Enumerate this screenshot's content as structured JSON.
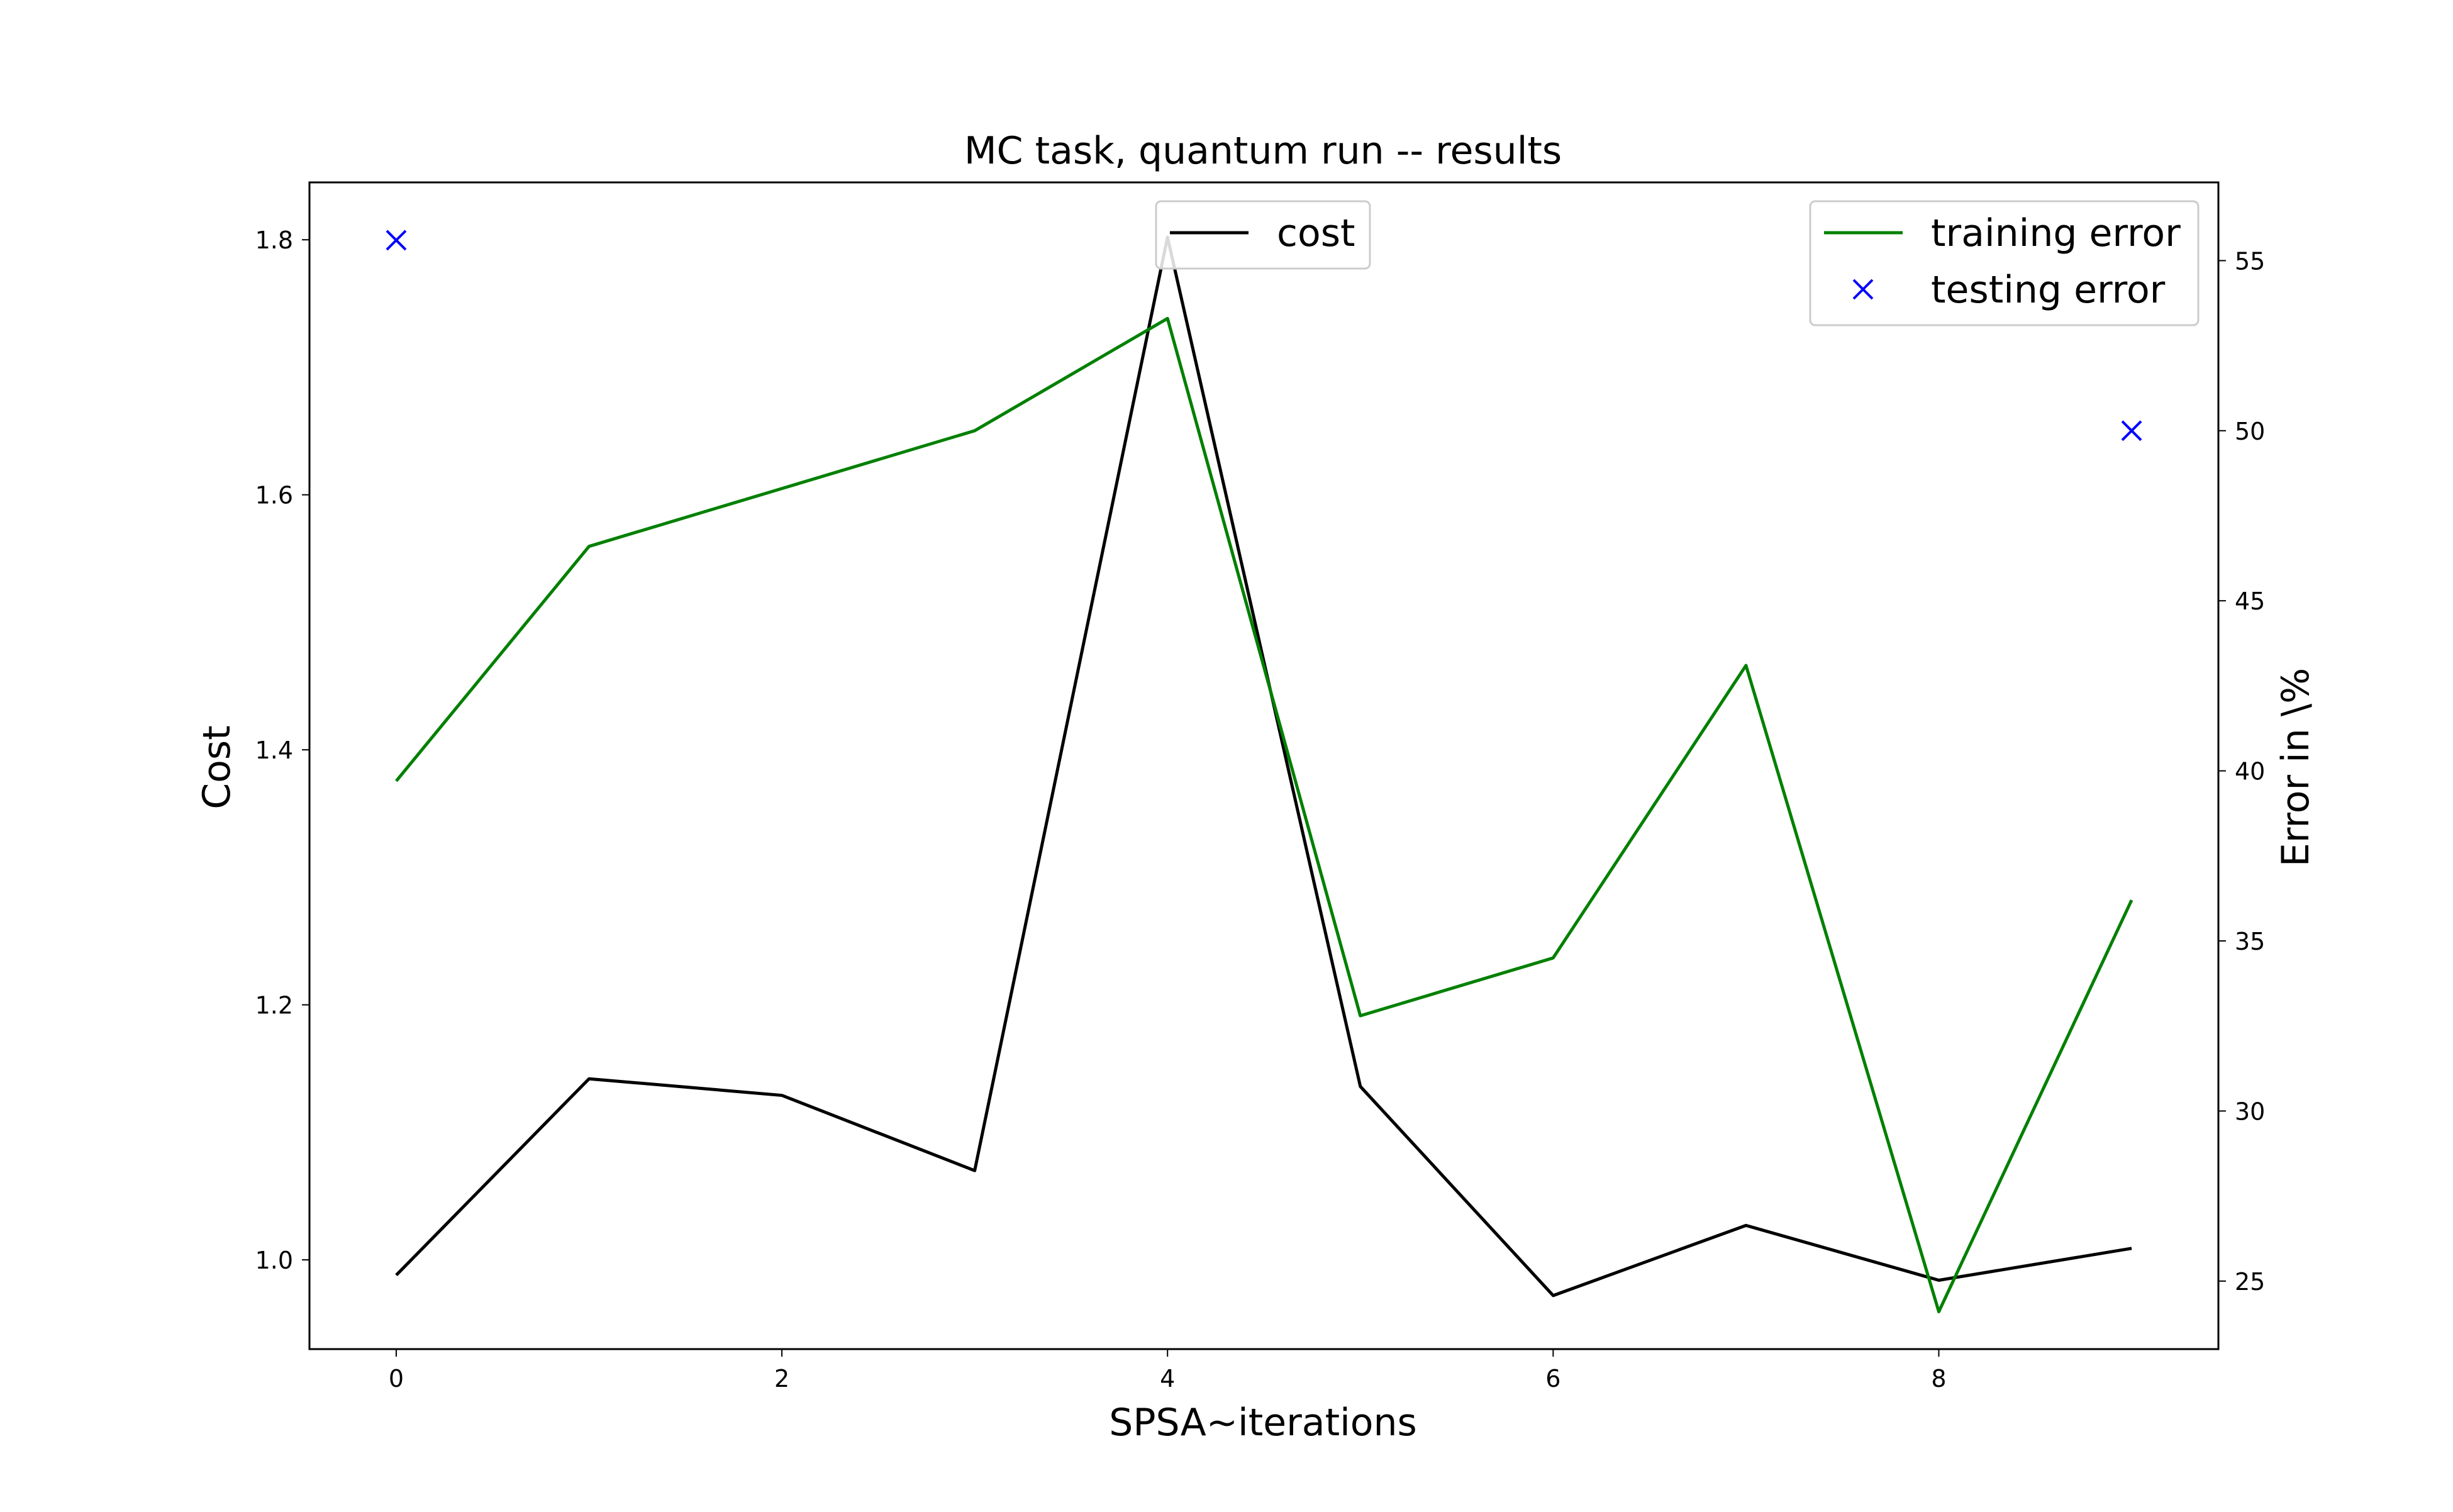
{
  "chart_data": {
    "type": "line",
    "title": "MC task, quantum run -- results",
    "xlabel": "SPSA~iterations",
    "ylabel_left": "Cost",
    "ylabel_right": "Error in \\%",
    "xlim": [
      -0.45,
      9.45
    ],
    "ylim_left": [
      0.93,
      1.845
    ],
    "ylim_right": [
      23.0,
      57.3
    ],
    "x_ticks": [
      0,
      2,
      4,
      6,
      8
    ],
    "y_left_ticks": [
      1.0,
      1.2,
      1.4,
      1.6,
      1.8
    ],
    "y_right_ticks": [
      25,
      30,
      35,
      40,
      45,
      50,
      55
    ],
    "grid": false,
    "x": [
      0,
      1,
      2,
      3,
      4,
      5,
      6,
      7,
      8,
      9
    ],
    "series": [
      {
        "name": "cost",
        "axis": "left",
        "style": "line",
        "color": "#000000",
        "values": [
          0.988,
          1.142,
          1.129,
          1.07,
          1.802,
          1.136,
          0.972,
          1.027,
          0.984,
          1.009
        ]
      },
      {
        "name": "training error",
        "axis": "right",
        "style": "line",
        "color": "#008000",
        "values": [
          39.7,
          46.6,
          48.3,
          50.0,
          53.3,
          32.8,
          34.5,
          43.1,
          24.1,
          36.2
        ]
      },
      {
        "name": "testing error",
        "axis": "right",
        "style": "marker-x",
        "color": "#0000ff",
        "x": [
          0,
          9
        ],
        "values": [
          55.6,
          50.0
        ]
      }
    ],
    "legends": [
      {
        "placement": "upper-center",
        "entries": [
          "cost"
        ]
      },
      {
        "placement": "upper-right",
        "entries": [
          "training error",
          "testing error"
        ]
      }
    ]
  }
}
